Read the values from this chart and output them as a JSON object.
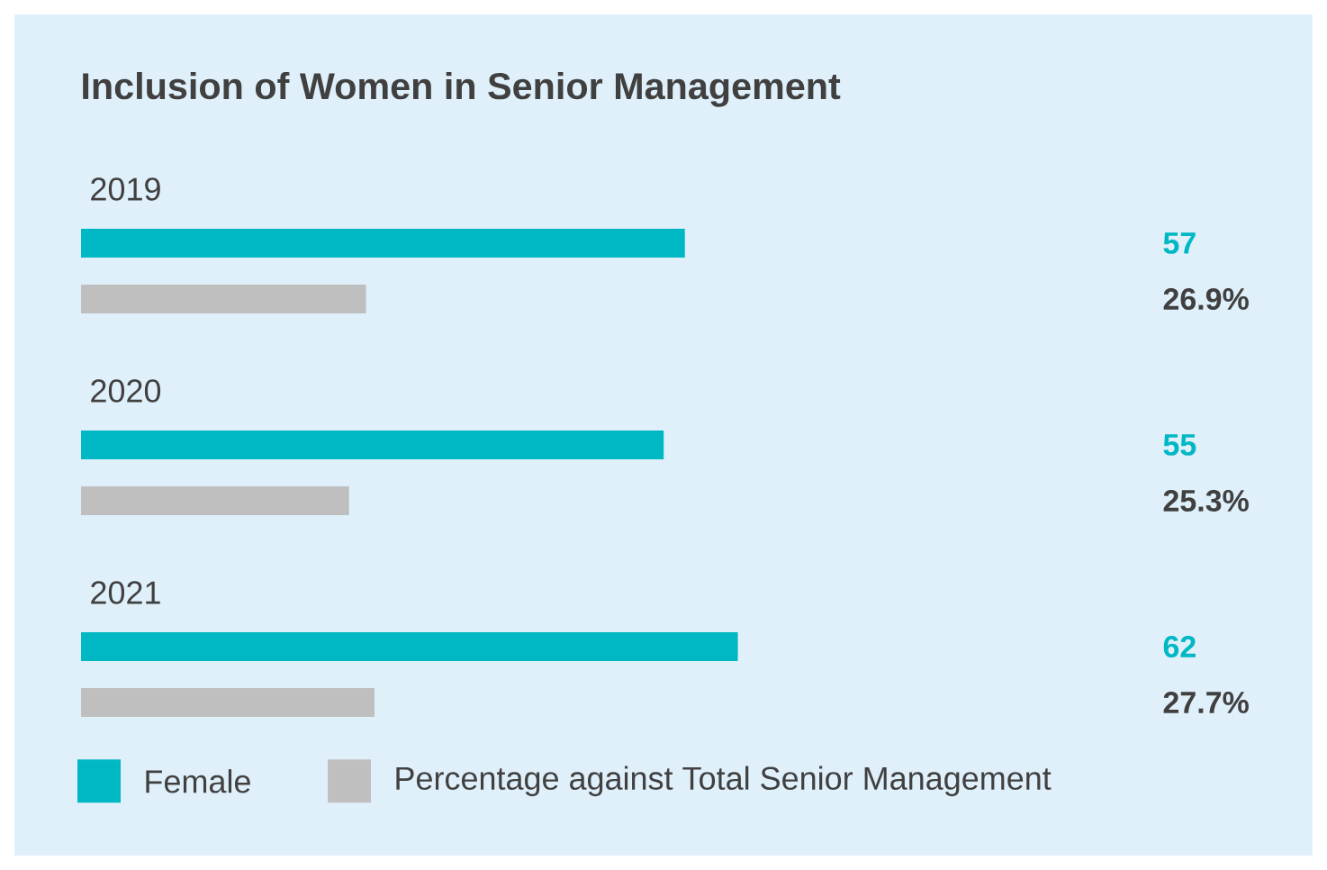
{
  "chart_data": {
    "type": "bar",
    "orientation": "horizontal",
    "title": "Inclusion of Women in Senior Management",
    "categories": [
      "2019",
      "2020",
      "2021"
    ],
    "series": [
      {
        "name": "Female",
        "color": "#00b8c4",
        "values": [
          57,
          55,
          62
        ],
        "value_labels": [
          "57",
          "55",
          "62"
        ]
      },
      {
        "name": "Percentage against Total Senior Management",
        "color": "#bfbfbf",
        "values": [
          26.9,
          25.3,
          27.7
        ],
        "value_labels": [
          "26.9%",
          "25.3%",
          "27.7%"
        ]
      }
    ],
    "legend": "bottom"
  }
}
